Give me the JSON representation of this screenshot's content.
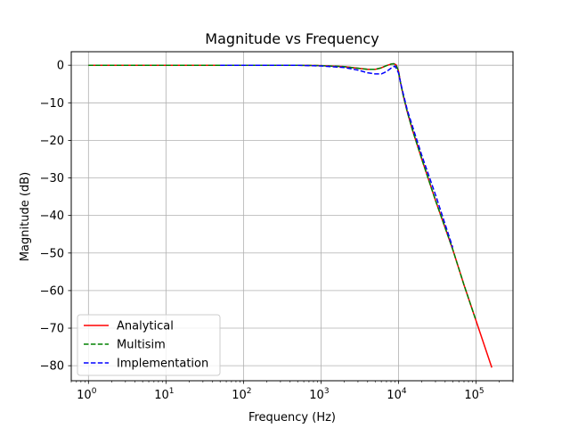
{
  "chart_data": {
    "type": "line",
    "title": "Magnitude vs Frequency",
    "xlabel": "Frequency (Hz)",
    "ylabel": "Magnitude (dB)",
    "xscale": "log",
    "xlim": [
      0.6,
      300000
    ],
    "ylim": [
      -84,
      3.6
    ],
    "xticks": [
      1,
      10,
      100,
      1000,
      10000,
      100000
    ],
    "xtick_labels": [
      {
        "base": "10",
        "exp": "0"
      },
      {
        "base": "10",
        "exp": "1"
      },
      {
        "base": "10",
        "exp": "2"
      },
      {
        "base": "10",
        "exp": "3"
      },
      {
        "base": "10",
        "exp": "4"
      },
      {
        "base": "10",
        "exp": "5"
      }
    ],
    "yticks": [
      0,
      -10,
      -20,
      -30,
      -40,
      -50,
      -60,
      -70,
      -80
    ],
    "ytick_labels": [
      "0",
      "−10",
      "−20",
      "−30",
      "−40",
      "−50",
      "−60",
      "−70",
      "−80"
    ],
    "grid": true,
    "legend_position": "lower-left",
    "series": [
      {
        "name": "Analytical",
        "color": "#ff0000",
        "dash": "solid",
        "points": [
          [
            1,
            0
          ],
          [
            10,
            0
          ],
          [
            100,
            0
          ],
          [
            500,
            0
          ],
          [
            1000,
            -0.1
          ],
          [
            2000,
            -0.4
          ],
          [
            3000,
            -0.8
          ],
          [
            4000,
            -1.1
          ],
          [
            5000,
            -1.1
          ],
          [
            6000,
            -0.7
          ],
          [
            7000,
            -0.1
          ],
          [
            8000,
            0.3
          ],
          [
            8700,
            0.4
          ],
          [
            9300,
            0.1
          ],
          [
            10000,
            -1.5
          ],
          [
            10600,
            -4.5
          ],
          [
            11500,
            -8
          ],
          [
            13000,
            -12.5
          ],
          [
            15000,
            -17
          ],
          [
            20000,
            -25
          ],
          [
            30000,
            -36
          ],
          [
            50000,
            -49
          ],
          [
            70000,
            -58.5
          ],
          [
            100000,
            -68
          ],
          [
            160000,
            -80.5
          ]
        ]
      },
      {
        "name": "Multisim",
        "color": "#008000",
        "dash": "dashed",
        "points": [
          [
            1,
            0
          ],
          [
            10,
            0
          ],
          [
            100,
            0
          ],
          [
            500,
            0
          ],
          [
            1000,
            -0.1
          ],
          [
            2000,
            -0.4
          ],
          [
            3000,
            -0.8
          ],
          [
            4000,
            -1.1
          ],
          [
            5000,
            -1.1
          ],
          [
            6000,
            -0.7
          ],
          [
            7000,
            -0.1
          ],
          [
            8000,
            0.3
          ],
          [
            8700,
            0.4
          ],
          [
            9300,
            0.1
          ],
          [
            10000,
            -1.5
          ],
          [
            10600,
            -4.5
          ],
          [
            11500,
            -8
          ],
          [
            13000,
            -12.5
          ],
          [
            15000,
            -17
          ],
          [
            20000,
            -25
          ],
          [
            30000,
            -36
          ],
          [
            50000,
            -49
          ],
          [
            70000,
            -58.5
          ],
          [
            100000,
            -68
          ]
        ]
      },
      {
        "name": "Implementation",
        "color": "#0000ff",
        "dash": "dashed",
        "points": [
          [
            50,
            0
          ],
          [
            100,
            0
          ],
          [
            500,
            0
          ],
          [
            1000,
            -0.2
          ],
          [
            2000,
            -0.6
          ],
          [
            3000,
            -1.3
          ],
          [
            4000,
            -2
          ],
          [
            5000,
            -2.3
          ],
          [
            6000,
            -2.3
          ],
          [
            7000,
            -1.7
          ],
          [
            8000,
            -0.8
          ],
          [
            9000,
            -0.2
          ],
          [
            10000,
            -2
          ],
          [
            10600,
            -4.5
          ],
          [
            11500,
            -7.5
          ],
          [
            13000,
            -12
          ],
          [
            15000,
            -16
          ],
          [
            20000,
            -24
          ],
          [
            30000,
            -34.5
          ],
          [
            50000,
            -48.5
          ]
        ]
      }
    ]
  }
}
